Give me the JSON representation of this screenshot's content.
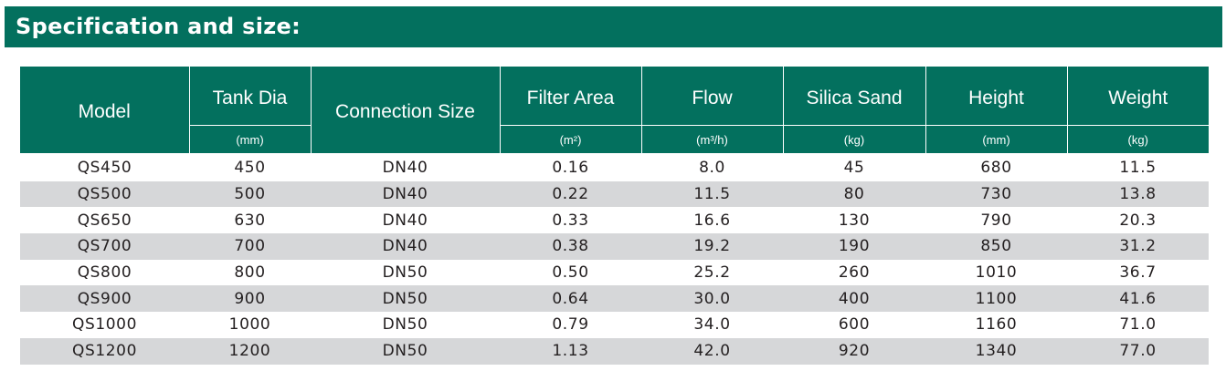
{
  "title": "Specification and size:",
  "table": {
    "headers": {
      "model": "Model",
      "tank_dia": "Tank Dia",
      "tank_dia_unit": "(mm)",
      "connection_size": "Connection Size",
      "filter_area": "Filter Area",
      "filter_area_unit": "(m²)",
      "flow": "Flow",
      "flow_unit": "(m³/h)",
      "silica_sand": "Silica Sand",
      "silica_sand_unit": "(kg)",
      "height": "Height",
      "height_unit": "(mm)",
      "weight": "Weight",
      "weight_unit": "(kg)"
    },
    "rows": [
      {
        "model": "QS450",
        "tank_dia": "450",
        "connection": "DN40",
        "filter_area": "0.16",
        "flow": "8.0",
        "silica_sand": "45",
        "height": "680",
        "weight": "11.5"
      },
      {
        "model": "QS500",
        "tank_dia": "500",
        "connection": "DN40",
        "filter_area": "0.22",
        "flow": "11.5",
        "silica_sand": "80",
        "height": "730",
        "weight": "13.8"
      },
      {
        "model": "QS650",
        "tank_dia": "630",
        "connection": "DN40",
        "filter_area": "0.33",
        "flow": "16.6",
        "silica_sand": "130",
        "height": "790",
        "weight": "20.3"
      },
      {
        "model": "QS700",
        "tank_dia": "700",
        "connection": "DN40",
        "filter_area": "0.38",
        "flow": "19.2",
        "silica_sand": "190",
        "height": "850",
        "weight": "31.2"
      },
      {
        "model": "QS800",
        "tank_dia": "800",
        "connection": "DN50",
        "filter_area": "0.50",
        "flow": "25.2",
        "silica_sand": "260",
        "height": "1010",
        "weight": "36.7"
      },
      {
        "model": "QS900",
        "tank_dia": "900",
        "connection": "DN50",
        "filter_area": "0.64",
        "flow": "30.0",
        "silica_sand": "400",
        "height": "1100",
        "weight": "41.6"
      },
      {
        "model": "QS1000",
        "tank_dia": "1000",
        "connection": "DN50",
        "filter_area": "0.79",
        "flow": "34.0",
        "silica_sand": "600",
        "height": "1160",
        "weight": "71.0"
      },
      {
        "model": "QS1200",
        "tank_dia": "1200",
        "connection": "DN50",
        "filter_area": "1.13",
        "flow": "42.0",
        "silica_sand": "920",
        "height": "1340",
        "weight": "77.0"
      }
    ]
  },
  "colors": {
    "header_bg": "#03705e",
    "header_text": "#ffffff",
    "row_shade": "#d6d7d9",
    "body_text": "#231f20"
  }
}
